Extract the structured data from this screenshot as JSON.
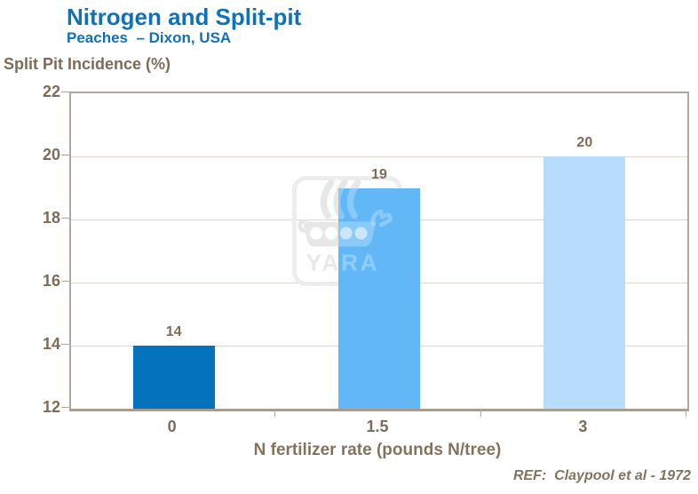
{
  "header": {
    "title": "Nitrogen and Split-pit",
    "subtitle": "Peaches  – Dixon, USA"
  },
  "chart_data": {
    "type": "bar",
    "title": "Nitrogen and Split-pit",
    "subtitle": "Peaches  – Dixon, USA",
    "ylabel": "Split Pit Incidence (%)",
    "xlabel": "N fertilizer rate (pounds N/tree)",
    "categories": [
      "0",
      "1.5",
      "3"
    ],
    "values": [
      14,
      19,
      20
    ],
    "value_labels": [
      "14",
      "19",
      "20"
    ],
    "bar_colors": [
      "#0572bd",
      "#62b8f6",
      "#b8dcfb"
    ],
    "ylim": [
      12,
      22
    ],
    "yticks": [
      22,
      20,
      18,
      16,
      14,
      12
    ],
    "gridlines": [
      20,
      18,
      16,
      14
    ],
    "grid": "horizontal",
    "legend_position": "none"
  },
  "watermark": {
    "text": "YARA"
  },
  "footer": {
    "reference": "REF:  Claypool et al - 1972"
  },
  "colors": {
    "title_blue": "#0e72ba",
    "axis_text_brown": "#7d6c55",
    "label_brown": "#84735c",
    "axis_line": "#b2a89a",
    "grid_line": "#ddd6c9",
    "bar_dark_blue": "#0572bd",
    "bar_medium_blue": "#62b8f6",
    "bar_light_blue": "#b8dcfb",
    "watermark_gray": "#dfdfdf"
  }
}
